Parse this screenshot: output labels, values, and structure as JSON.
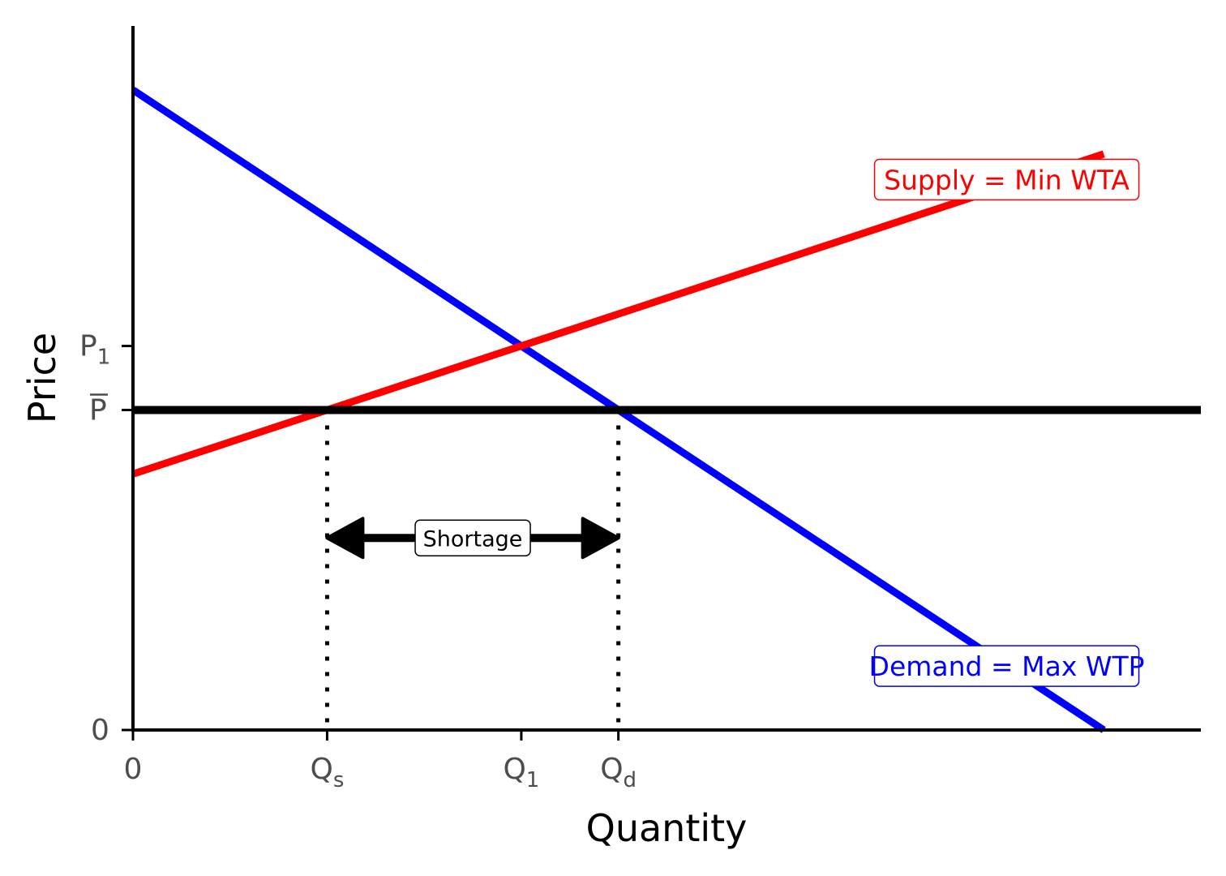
{
  "chart_data": {
    "type": "line",
    "xlabel": "Quantity",
    "ylabel": "Price",
    "xlim": [
      0,
      11
    ],
    "ylim": [
      0,
      11
    ],
    "grid": false,
    "x_ticks": [
      {
        "value": 0,
        "main": "0",
        "sub": ""
      },
      {
        "value": 2,
        "main": "Q",
        "sub": "s"
      },
      {
        "value": 4,
        "main": "Q",
        "sub": "1"
      },
      {
        "value": 5,
        "main": "Q",
        "sub": "d"
      }
    ],
    "y_ticks": [
      {
        "value": 0,
        "main": "0",
        "sub": "",
        "overline": false
      },
      {
        "value": 5,
        "main": "P",
        "sub": "",
        "overline": true
      },
      {
        "value": 6,
        "main": "P",
        "sub": "1",
        "overline": false
      }
    ],
    "series": [
      {
        "name": "Demand = Max WTP",
        "color": "#0000ff",
        "x": [
          0,
          10
        ],
        "y": [
          10,
          0
        ]
      },
      {
        "name": "Supply = Min WTA",
        "color": "#ff0000",
        "x": [
          0,
          10
        ],
        "y": [
          4,
          9
        ]
      }
    ],
    "price_ceiling": {
      "y": 5,
      "color": "#000000"
    },
    "guides": [
      {
        "x": 2,
        "y": 5
      },
      {
        "x": 5,
        "y": 5
      }
    ],
    "annotations": [
      {
        "text": "Supply = Min WTA",
        "x": 9.0,
        "y": 8.6,
        "color": "#ff0000"
      },
      {
        "text": "Demand = Max WTP",
        "x": 9.0,
        "y": 1.0,
        "color": "#0000ff"
      }
    ],
    "shortage": {
      "label": "Shortage",
      "x_start": 2,
      "x_end": 5,
      "y": 3
    }
  }
}
